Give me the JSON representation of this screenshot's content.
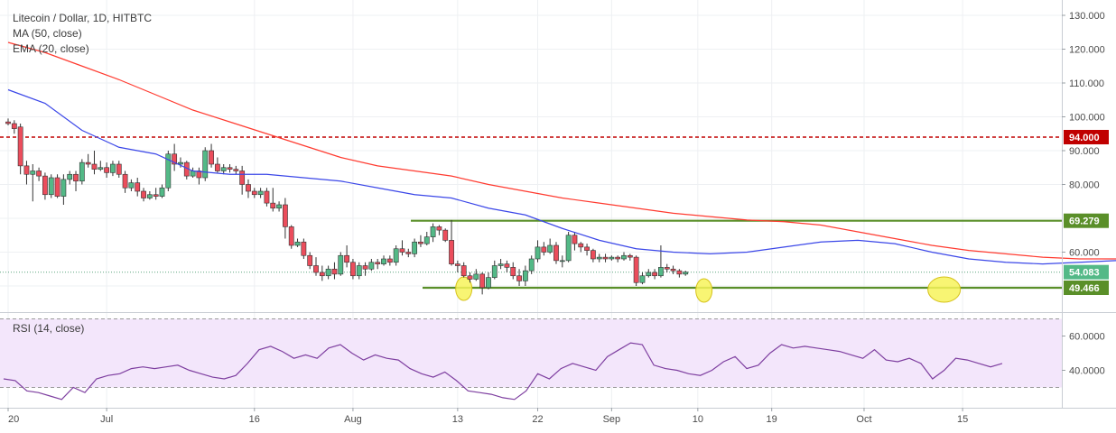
{
  "legend": {
    "symbol": "Litecoin / Dollar, 1D, HITBTC",
    "ma": "MA (50, close)",
    "ema": "EMA (20, close)",
    "rsi": "RSI (14, close)"
  },
  "colors": {
    "up": "#53b987",
    "down": "#eb4d5c",
    "ma50": "#ff3b30",
    "ema20": "#3b47e8",
    "resistance": "#c00000",
    "support": "#5a8f29",
    "rsi_line": "#7e3fa0",
    "rsi_band": "#f3e6fb"
  },
  "chart_data": [
    {
      "type": "candlestick",
      "symbol": "LTCUSD",
      "timeframe": "1D",
      "y_range": [
        36,
        132
      ],
      "y_ticks": [
        "130.000",
        "120.000",
        "110.000",
        "100.000",
        "90.000",
        "80.000",
        "60.000"
      ],
      "x_ticks": [
        "20",
        "Jul",
        "16",
        "Aug",
        "13",
        "22",
        "Sep",
        "10",
        "19",
        "Oct",
        "15"
      ],
      "last_price": "54.083",
      "levels": [
        {
          "value": 94.0,
          "label": "94.000",
          "style": "dashed",
          "color_key": "resistance"
        },
        {
          "value": 69.279,
          "label": "69.279",
          "style": "solid",
          "color_key": "support"
        },
        {
          "value": 49.466,
          "label": "49.466",
          "style": "solid",
          "color_key": "support"
        }
      ],
      "candles": [
        [
          98.5,
          98,
          99.5,
          97.5
        ],
        [
          98,
          96.5,
          99,
          95
        ],
        [
          97,
          85.5,
          98,
          83
        ],
        [
          85.5,
          83,
          87,
          80
        ],
        [
          83,
          84,
          86,
          75
        ],
        [
          84,
          82.5,
          85,
          81
        ],
        [
          82.5,
          77,
          83.5,
          75.5
        ],
        [
          77,
          82,
          83,
          76
        ],
        [
          82,
          76.5,
          83,
          76
        ],
        [
          76.5,
          81.5,
          83,
          74
        ],
        [
          81.5,
          83,
          84,
          80
        ],
        [
          83,
          81,
          84,
          78
        ],
        [
          81,
          86.5,
          87.5,
          80
        ],
        [
          86.5,
          86,
          89,
          85
        ],
        [
          86,
          84.5,
          90,
          83
        ],
        [
          84.5,
          85,
          87,
          84
        ],
        [
          85,
          83.5,
          86.5,
          82
        ],
        [
          83.5,
          86,
          87,
          82.5
        ],
        [
          86,
          83,
          87,
          82
        ],
        [
          83,
          79,
          84,
          77.5
        ],
        [
          79,
          80.5,
          81.5,
          78
        ],
        [
          80.5,
          78,
          82,
          76.5
        ],
        [
          78,
          76,
          79,
          75
        ],
        [
          76,
          77,
          78,
          75.5
        ],
        [
          77,
          76.5,
          79,
          75.5
        ],
        [
          76.5,
          79,
          80,
          76
        ],
        [
          79,
          89,
          90,
          78
        ],
        [
          89,
          86,
          92,
          84
        ],
        [
          86,
          86.5,
          88,
          85
        ],
        [
          86.5,
          82.5,
          87,
          81.5
        ],
        [
          82.5,
          84,
          85,
          82
        ],
        [
          84,
          82,
          85,
          80
        ],
        [
          82,
          90,
          91,
          81
        ],
        [
          90,
          86,
          92,
          85
        ],
        [
          86,
          84,
          88,
          83.5
        ],
        [
          84,
          85,
          86,
          83
        ],
        [
          85,
          84.5,
          86,
          83.5
        ],
        [
          84.5,
          84,
          85.5,
          83
        ],
        [
          84,
          80,
          85.5,
          77
        ],
        [
          80,
          78,
          81.5,
          76
        ],
        [
          78,
          77,
          79,
          76
        ],
        [
          77,
          78,
          79,
          76
        ],
        [
          78,
          74.5,
          79,
          73.5
        ],
        [
          74.5,
          73,
          79,
          72
        ],
        [
          73,
          74,
          75,
          72
        ],
        [
          74,
          67.5,
          76,
          64
        ],
        [
          67.5,
          62,
          68,
          61
        ],
        [
          62,
          63,
          64,
          61.5
        ],
        [
          63,
          59,
          64,
          58
        ],
        [
          59,
          56,
          60,
          55
        ],
        [
          56,
          54,
          58.5,
          53
        ],
        [
          54,
          53,
          56,
          51.5
        ],
        [
          53,
          55,
          56,
          52
        ],
        [
          55,
          53.5,
          57,
          52
        ],
        [
          53.5,
          59,
          60,
          53
        ],
        [
          59,
          57,
          62,
          55.5
        ],
        [
          57,
          53,
          58,
          52
        ],
        [
          53,
          56,
          57,
          52
        ],
        [
          56,
          55,
          57,
          53
        ],
        [
          55,
          57,
          58,
          54.5
        ],
        [
          57,
          56.5,
          58,
          55
        ],
        [
          56.5,
          58,
          59,
          56
        ],
        [
          58,
          57,
          59,
          56
        ],
        [
          57,
          61,
          62,
          56
        ],
        [
          61,
          60,
          63.5,
          59
        ],
        [
          60,
          59.5,
          61,
          58.5
        ],
        [
          59.5,
          63,
          64,
          58.5
        ],
        [
          63,
          62.5,
          65,
          61.5
        ],
        [
          62.5,
          64.5,
          66,
          62
        ],
        [
          64.5,
          67.5,
          68.5,
          63
        ],
        [
          67.5,
          66.5,
          68,
          65
        ],
        [
          66.5,
          63.5,
          67,
          63
        ],
        [
          63.5,
          56.5,
          69.5,
          56
        ],
        [
          56.5,
          56,
          57.5,
          54
        ],
        [
          56,
          53,
          57,
          52.5
        ],
        [
          53,
          52,
          54,
          51
        ],
        [
          52,
          53.5,
          55,
          51.5
        ],
        [
          53.5,
          49.5,
          54,
          47.5
        ],
        [
          49.5,
          52.5,
          54,
          49
        ],
        [
          52.5,
          56,
          57.5,
          52
        ],
        [
          56,
          56.5,
          58,
          55
        ],
        [
          56.5,
          55.5,
          57.5,
          54
        ],
        [
          55.5,
          53,
          57,
          52
        ],
        [
          53,
          51.5,
          55,
          50
        ],
        [
          51.5,
          54.5,
          56,
          50
        ],
        [
          54.5,
          58,
          59,
          53.5
        ],
        [
          58,
          61.5,
          63.5,
          57
        ],
        [
          61.5,
          60,
          63,
          59
        ],
        [
          60,
          62,
          64,
          59.5
        ],
        [
          62,
          57.5,
          63,
          56.5
        ],
        [
          57.5,
          57.5,
          59,
          55.5
        ],
        [
          57.5,
          65,
          66,
          57
        ],
        [
          65,
          62.5,
          66,
          60.5
        ],
        [
          62.5,
          61.5,
          63,
          60
        ],
        [
          61.5,
          60.5,
          62.5,
          59
        ],
        [
          60.5,
          58,
          61,
          57
        ],
        [
          58,
          58.5,
          59.5,
          57
        ],
        [
          58.5,
          58,
          59.5,
          57
        ],
        [
          58,
          58.5,
          59,
          57.5
        ],
        [
          58.5,
          58,
          59,
          57
        ],
        [
          58,
          59,
          60,
          57.5
        ],
        [
          59,
          58.5,
          59.5,
          57.5
        ],
        [
          58.5,
          51,
          59,
          50
        ],
        [
          51,
          53,
          54,
          50.5
        ],
        [
          53,
          54,
          55,
          52.5
        ],
        [
          54,
          53,
          55,
          52
        ],
        [
          53,
          55.5,
          62,
          52.5
        ],
        [
          55.5,
          55,
          56.5,
          54
        ],
        [
          55,
          54.5,
          56,
          53.5
        ],
        [
          54.5,
          53.5,
          55,
          52.5
        ],
        [
          53.5,
          54.1,
          54.5,
          53
        ]
      ],
      "ema20": [
        [
          0,
          108
        ],
        [
          6,
          104
        ],
        [
          12,
          96
        ],
        [
          18,
          91
        ],
        [
          24,
          89
        ],
        [
          30,
          84
        ],
        [
          36,
          83
        ],
        [
          42,
          83
        ],
        [
          48,
          82
        ],
        [
          54,
          81
        ],
        [
          60,
          79
        ],
        [
          66,
          77
        ],
        [
          72,
          76
        ],
        [
          78,
          73
        ],
        [
          84,
          71
        ],
        [
          90,
          67
        ],
        [
          96,
          63.5
        ],
        [
          102,
          61
        ],
        [
          108,
          60
        ],
        [
          114,
          59.5
        ],
        [
          120,
          60
        ],
        [
          126,
          61.5
        ],
        [
          132,
          63
        ],
        [
          138,
          63.5
        ],
        [
          144,
          62.5
        ],
        [
          150,
          60
        ],
        [
          156,
          58
        ],
        [
          162,
          57
        ],
        [
          168,
          56.5
        ],
        [
          174,
          57
        ],
        [
          180,
          57.5
        ],
        [
          186,
          58
        ],
        [
          192,
          58
        ],
        [
          198,
          58
        ],
        [
          204,
          57.5
        ],
        [
          210,
          56
        ],
        [
          216,
          55.5
        ],
        [
          222,
          55
        ]
      ],
      "ma50": [
        [
          0,
          122
        ],
        [
          6,
          119
        ],
        [
          12,
          115
        ],
        [
          18,
          111
        ],
        [
          24,
          106.5
        ],
        [
          30,
          102
        ],
        [
          36,
          98.5
        ],
        [
          42,
          95
        ],
        [
          48,
          91.5
        ],
        [
          54,
          88
        ],
        [
          60,
          85.5
        ],
        [
          66,
          84
        ],
        [
          72,
          82.5
        ],
        [
          78,
          80
        ],
        [
          84,
          78
        ],
        [
          90,
          76
        ],
        [
          96,
          74.5
        ],
        [
          102,
          73
        ],
        [
          108,
          71.5
        ],
        [
          114,
          70.5
        ],
        [
          120,
          69.5
        ],
        [
          126,
          69
        ],
        [
          132,
          68
        ],
        [
          138,
          66
        ],
        [
          144,
          64
        ],
        [
          150,
          62
        ],
        [
          156,
          60.5
        ],
        [
          162,
          59.5
        ],
        [
          168,
          58.5
        ],
        [
          174,
          58
        ],
        [
          180,
          58
        ],
        [
          186,
          58
        ],
        [
          192,
          57.5
        ],
        [
          198,
          57.5
        ],
        [
          204,
          57.5
        ],
        [
          210,
          57
        ],
        [
          216,
          57
        ]
      ]
    },
    {
      "type": "line",
      "title": "RSI (14, close)",
      "y_range": [
        24,
        70
      ],
      "y_ticks": [
        "60.0000",
        "40.0000"
      ],
      "band": [
        30,
        70
      ],
      "values": [
        [
          0,
          35
        ],
        [
          4,
          34
        ],
        [
          8,
          28
        ],
        [
          12,
          27
        ],
        [
          16,
          25
        ],
        [
          20,
          23
        ],
        [
          24,
          30
        ],
        [
          28,
          27
        ],
        [
          32,
          35
        ],
        [
          36,
          37
        ],
        [
          40,
          38
        ],
        [
          44,
          41
        ],
        [
          48,
          42
        ],
        [
          52,
          41
        ],
        [
          56,
          42
        ],
        [
          60,
          43
        ],
        [
          64,
          40
        ],
        [
          68,
          38
        ],
        [
          72,
          36
        ],
        [
          76,
          35
        ],
        [
          80,
          37
        ],
        [
          84,
          44
        ],
        [
          88,
          52
        ],
        [
          92,
          54
        ],
        [
          96,
          51
        ],
        [
          100,
          47
        ],
        [
          104,
          49
        ],
        [
          108,
          47
        ],
        [
          112,
          53
        ],
        [
          116,
          55
        ],
        [
          120,
          50
        ],
        [
          124,
          46
        ],
        [
          128,
          49
        ],
        [
          132,
          47
        ],
        [
          136,
          46
        ],
        [
          140,
          41
        ],
        [
          144,
          38
        ],
        [
          148,
          36
        ],
        [
          152,
          39
        ],
        [
          156,
          34
        ],
        [
          160,
          28
        ],
        [
          164,
          27
        ],
        [
          168,
          26
        ],
        [
          172,
          24
        ],
        [
          176,
          23
        ],
        [
          180,
          28
        ],
        [
          184,
          38
        ],
        [
          188,
          35
        ],
        [
          192,
          41
        ],
        [
          196,
          44
        ],
        [
          200,
          42
        ],
        [
          204,
          40
        ],
        [
          208,
          48
        ],
        [
          212,
          52
        ],
        [
          216,
          56
        ],
        [
          220,
          55
        ],
        [
          224,
          43
        ],
        [
          228,
          41
        ],
        [
          232,
          40
        ],
        [
          236,
          38
        ],
        [
          240,
          37
        ],
        [
          244,
          40
        ],
        [
          248,
          45
        ],
        [
          252,
          48
        ],
        [
          256,
          41
        ],
        [
          260,
          43
        ],
        [
          264,
          50
        ],
        [
          268,
          55
        ],
        [
          272,
          53
        ],
        [
          276,
          54
        ],
        [
          280,
          53
        ],
        [
          284,
          52
        ],
        [
          288,
          51
        ],
        [
          292,
          49
        ],
        [
          296,
          47
        ],
        [
          300,
          52
        ],
        [
          304,
          46
        ],
        [
          308,
          45
        ],
        [
          312,
          47
        ],
        [
          316,
          44
        ],
        [
          320,
          35
        ],
        [
          324,
          40
        ],
        [
          328,
          47
        ],
        [
          332,
          46
        ],
        [
          336,
          44
        ],
        [
          340,
          42
        ],
        [
          344,
          44
        ]
      ]
    }
  ]
}
